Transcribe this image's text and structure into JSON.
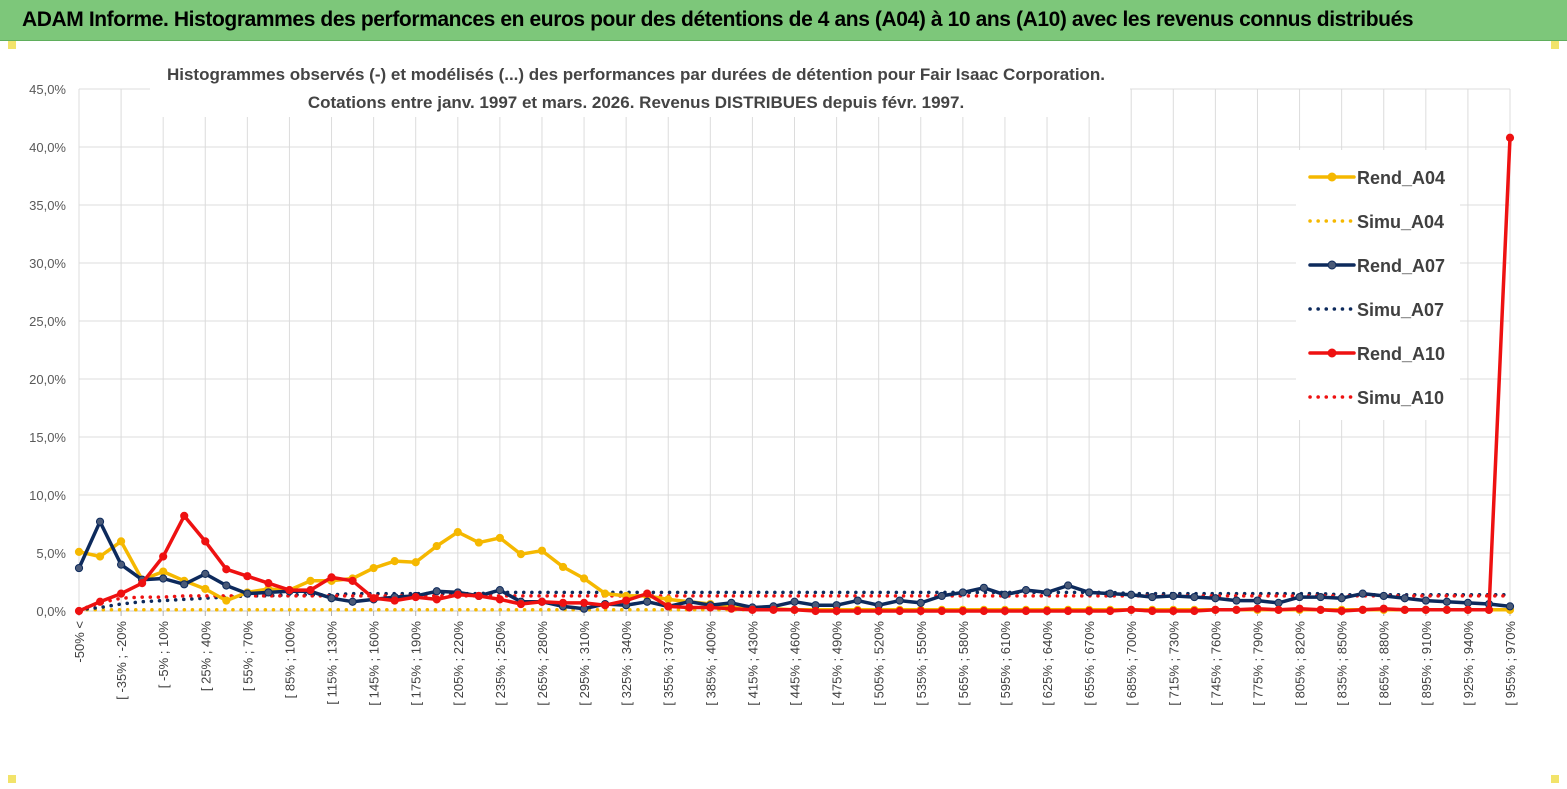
{
  "banner": {
    "title": "ADAM Informe. Histogrammes des performances en euros pour des détentions de 4 ans (A04) à 10 ans (A10) avec les revenus connus distribués"
  },
  "chart_data": {
    "type": "line",
    "title": "Histogrammes observés (-) et modélisés (...) des performances par durées de détention pour Fair Isaac Corporation.",
    "subtitle": "Cotations entre janv. 1997 et mars. 2026. Revenus DISTRIBUES depuis févr. 1997.",
    "xlabel": "",
    "ylabel": "",
    "ylim": [
      0,
      45
    ],
    "y_ticks": [
      "0,0%",
      "5,0%",
      "10,0%",
      "15,0%",
      "20,0%",
      "25,0%",
      "30,0%",
      "35,0%",
      "40,0%",
      "45,0%"
    ],
    "x_tick_labels": [
      "-50% <",
      "[ -35% ; -20%",
      "[ -5% ; 10%",
      "[ 25% ; 40%",
      "[ 55% ; 70%",
      "[ 85% ; 100%",
      "[ 115% ; 130%",
      "[ 145% ; 160%",
      "[ 175% ; 190%",
      "[ 205% ; 220%",
      "[ 235% ; 250%",
      "[ 265% ; 280%",
      "[ 295% ; 310%",
      "[ 325% ; 340%",
      "[ 355% ; 370%",
      "[ 385% ; 400%",
      "[ 415% ; 430%",
      "[ 445% ; 460%",
      "[ 475% ; 490%",
      "[ 505% ; 520%",
      "[ 535% ; 550%",
      "[ 565% ; 580%",
      "[ 595% ; 610%",
      "[ 625% ; 640%",
      "[ 655% ; 670%",
      "[ 685% ; 700%",
      "[ 715% ; 730%",
      "[ 745% ; 760%",
      "[ 775% ; 790%",
      "[ 805% ; 820%",
      "[ 835% ; 850%",
      "[ 865% ; 880%",
      "[ 895% ; 910%",
      "[ 925% ; 940%",
      "[ 955% ; 970%"
    ],
    "n_points": 69,
    "legend_position": "right",
    "series": [
      {
        "name": "Rend_A04",
        "style": "solid",
        "marker": true,
        "color": "#f5b800",
        "values": [
          5.1,
          4.7,
          6.0,
          2.7,
          3.4,
          2.6,
          1.9,
          0.9,
          1.6,
          1.9,
          1.8,
          2.6,
          2.6,
          2.8,
          3.7,
          4.3,
          4.2,
          5.6,
          6.8,
          5.9,
          6.3,
          4.9,
          5.2,
          3.8,
          2.8,
          1.5,
          1.3,
          1.3,
          1.0,
          0.8,
          0.6,
          0.3,
          0.2,
          0.2,
          0.1,
          0.1,
          0.1,
          0.1,
          0.1,
          0.1,
          0.1,
          0.1,
          0.1,
          0.1,
          0.1,
          0.1,
          0.1,
          0.1,
          0.1,
          0.1,
          0.1,
          0.1,
          0.1,
          0.1,
          0.1,
          0.1,
          0.1,
          0.1,
          0.1,
          0.1,
          0.1,
          0.1,
          0.1,
          0.1,
          0.1,
          0.1,
          0.1,
          0.1,
          0.1
        ]
      },
      {
        "name": "Simu_A04",
        "style": "dotted",
        "marker": false,
        "color": "#f5b800",
        "values": [
          0.1,
          0.1,
          0.1,
          0.1,
          0.1,
          0.1,
          0.1,
          0.1,
          0.1,
          0.1,
          0.1,
          0.1,
          0.1,
          0.1,
          0.1,
          0.1,
          0.1,
          0.1,
          0.1,
          0.1,
          0.1,
          0.1,
          0.1,
          0.1,
          0.1,
          0.1,
          0.1,
          0.1,
          0.1,
          0.1,
          0.1,
          0.1,
          0.1,
          0.1,
          0.1,
          0.1,
          0.1,
          0.1,
          0.1,
          0.1,
          0.1,
          0.1,
          0.1,
          0.1,
          0.1,
          0.1,
          0.1,
          0.1,
          0.1,
          0.1,
          0.1,
          0.1,
          0.1,
          0.1,
          0.1,
          0.1,
          0.1,
          0.1,
          0.1,
          0.1,
          0.1,
          0.1,
          0.1,
          0.1,
          0.1,
          0.1,
          0.1,
          0.1,
          0.1
        ]
      },
      {
        "name": "Rend_A07",
        "style": "solid",
        "marker": true,
        "color": "#0d2a5c",
        "values": [
          3.7,
          7.7,
          4.0,
          2.7,
          2.8,
          2.3,
          3.2,
          2.2,
          1.5,
          1.6,
          1.7,
          1.7,
          1.1,
          0.8,
          1.0,
          1.2,
          1.3,
          1.7,
          1.6,
          1.3,
          1.8,
          0.8,
          0.8,
          0.4,
          0.2,
          0.6,
          0.5,
          0.8,
          0.4,
          0.8,
          0.5,
          0.7,
          0.3,
          0.4,
          0.8,
          0.5,
          0.5,
          0.9,
          0.5,
          0.9,
          0.7,
          1.3,
          1.6,
          2.0,
          1.4,
          1.8,
          1.6,
          2.2,
          1.6,
          1.5,
          1.4,
          1.2,
          1.3,
          1.2,
          1.1,
          0.9,
          0.9,
          0.7,
          1.2,
          1.2,
          1.1,
          1.5,
          1.3,
          1.1,
          0.9,
          0.8,
          0.7,
          0.6,
          0.4
        ]
      },
      {
        "name": "Simu_A07",
        "style": "dotted",
        "marker": false,
        "color": "#0d2a5c",
        "values": [
          0.1,
          0.3,
          0.6,
          0.8,
          0.9,
          1.0,
          1.1,
          1.2,
          1.3,
          1.3,
          1.4,
          1.4,
          1.4,
          1.5,
          1.5,
          1.5,
          1.5,
          1.5,
          1.5,
          1.5,
          1.6,
          1.6,
          1.6,
          1.6,
          1.6,
          1.6,
          1.6,
          1.6,
          1.6,
          1.6,
          1.6,
          1.6,
          1.6,
          1.6,
          1.6,
          1.6,
          1.6,
          1.6,
          1.6,
          1.6,
          1.6,
          1.6,
          1.6,
          1.6,
          1.6,
          1.6,
          1.6,
          1.6,
          1.6,
          1.6,
          1.5,
          1.5,
          1.5,
          1.5,
          1.5,
          1.5,
          1.5,
          1.5,
          1.5,
          1.5,
          1.4,
          1.4,
          1.4,
          1.4,
          1.4,
          1.4,
          1.4,
          1.4,
          1.4
        ]
      },
      {
        "name": "Rend_A10",
        "style": "solid",
        "marker": true,
        "color": "#ee1111",
        "values": [
          0.0,
          0.8,
          1.5,
          2.4,
          4.7,
          8.2,
          6.0,
          3.6,
          3.0,
          2.4,
          1.8,
          1.8,
          2.9,
          2.6,
          1.1,
          0.9,
          1.2,
          1.0,
          1.4,
          1.3,
          1.0,
          0.6,
          0.8,
          0.7,
          0.7,
          0.5,
          0.9,
          1.5,
          0.4,
          0.3,
          0.3,
          0.2,
          0.1,
          0.1,
          0.1,
          0.0,
          0.0,
          0.0,
          0.0,
          0.0,
          0.0,
          0.0,
          0.0,
          0.0,
          0.0,
          0.0,
          0.0,
          0.0,
          0.0,
          0.0,
          0.1,
          0.0,
          0.0,
          0.0,
          0.1,
          0.1,
          0.2,
          0.1,
          0.2,
          0.1,
          0.0,
          0.1,
          0.2,
          0.1,
          0.1,
          0.1,
          0.1,
          0.1,
          40.8
        ]
      },
      {
        "name": "Simu_A10",
        "style": "dotted",
        "marker": false,
        "color": "#ee1111",
        "values": [
          0.1,
          0.7,
          1.1,
          1.2,
          1.2,
          1.3,
          1.3,
          1.3,
          1.3,
          1.3,
          1.3,
          1.3,
          1.3,
          1.3,
          1.3,
          1.3,
          1.3,
          1.3,
          1.3,
          1.3,
          1.3,
          1.3,
          1.3,
          1.3,
          1.3,
          1.3,
          1.3,
          1.3,
          1.3,
          1.3,
          1.3,
          1.3,
          1.3,
          1.3,
          1.3,
          1.3,
          1.3,
          1.3,
          1.3,
          1.3,
          1.3,
          1.3,
          1.3,
          1.3,
          1.3,
          1.3,
          1.3,
          1.3,
          1.3,
          1.3,
          1.3,
          1.3,
          1.3,
          1.3,
          1.3,
          1.3,
          1.3,
          1.3,
          1.3,
          1.3,
          1.3,
          1.3,
          1.3,
          1.3,
          1.3,
          1.3,
          1.3,
          1.3,
          1.3
        ]
      }
    ]
  }
}
